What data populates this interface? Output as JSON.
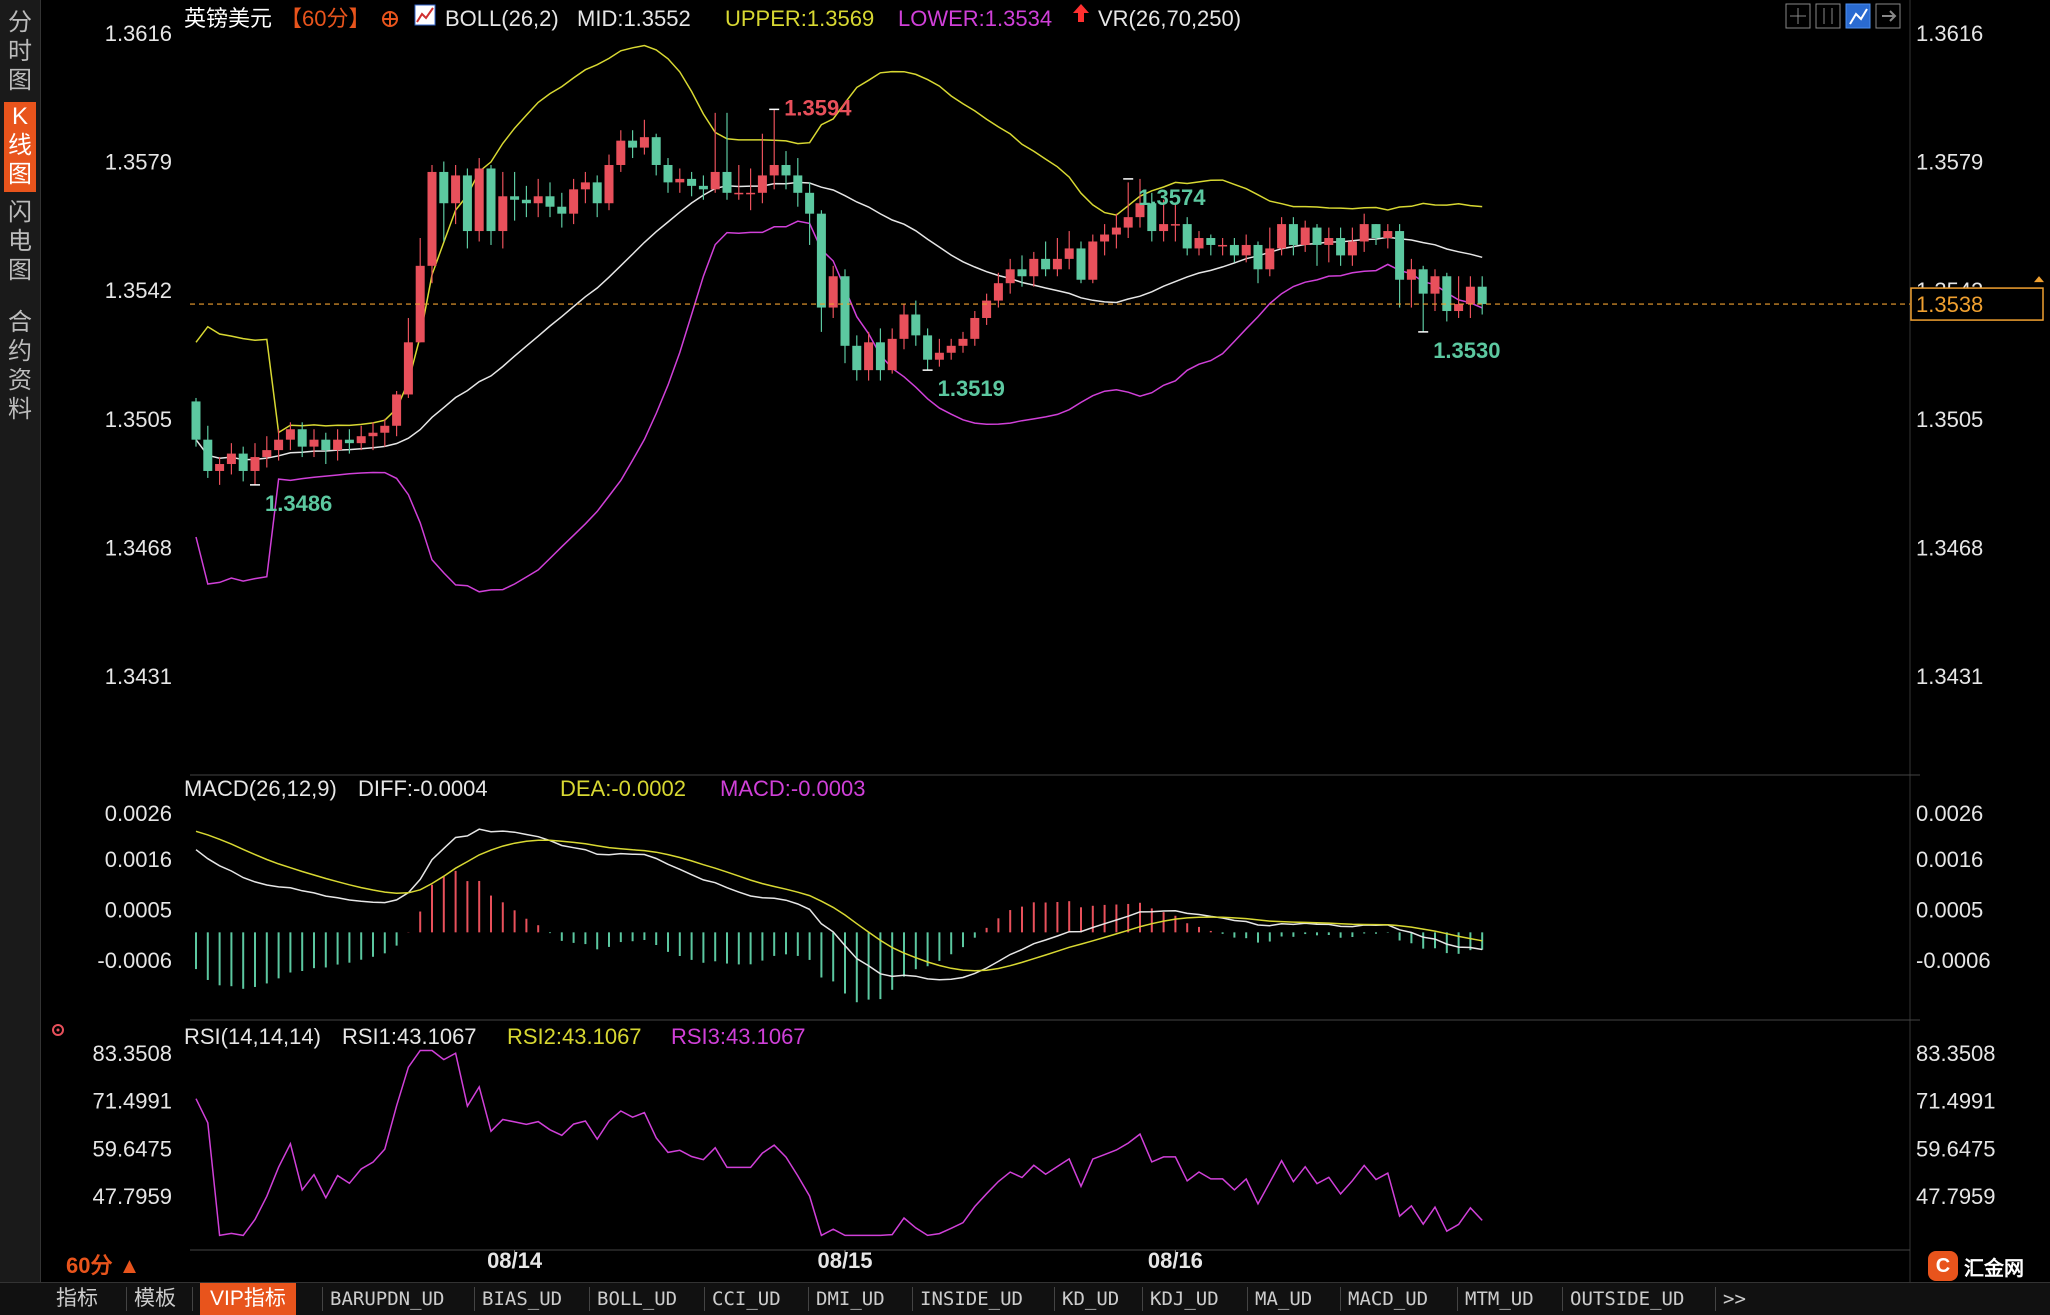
{
  "sidebar": {
    "tabs": [
      {
        "label": "分时图",
        "active": false
      },
      {
        "label": "K线图",
        "active": true
      },
      {
        "label": "闪电图",
        "active": false
      },
      {
        "label": "合约资料",
        "active": false
      }
    ]
  },
  "header": {
    "symbol": "英镑美元",
    "period": "【60分】",
    "boll_label": "BOLL(26,2)",
    "mid_label": "MID:1.3552",
    "upper_label": "UPPER:1.3569",
    "lower_label": "LOWER:1.3534",
    "vr_label": "VR(26,70,250)"
  },
  "macd_header": {
    "name": "MACD(26,12,9)",
    "diff": "DIFF:-0.0004",
    "dea": "DEA:-0.0002",
    "macd": "MACD:-0.0003"
  },
  "rsi_header": {
    "name": "RSI(14,14,14)",
    "rsi1": "RSI1:43.1067",
    "rsi2": "RSI2:43.1067",
    "rsi3": "RSI3:43.1067"
  },
  "period_label": "60分 ▲",
  "logo_text": "汇金网",
  "logo_mark": "C",
  "bottom_tabs": [
    "指标",
    "模板",
    "VIP指标",
    "BARUPDN_UD",
    "BIAS_UD",
    "BOLL_UD",
    "CCI_UD",
    "DMI_UD",
    "INSIDE_UD",
    "KD_UD",
    "KDJ_UD",
    "MA_UD",
    "MACD_UD",
    "MTM_UD",
    "OUTSIDE_UD",
    ">>"
  ],
  "colors": {
    "up": "#e8505b",
    "down": "#5cc8a0",
    "upper": "#d8d832",
    "mid": "#e6e6e6",
    "lower": "#d040d8",
    "accent": "#e8541c",
    "current": "#f0a030"
  },
  "chart_data": [
    {
      "type": "candlestick",
      "panel": "price",
      "y_ticks": [
        "1.3616",
        "1.3579",
        "1.3542",
        "1.3505",
        "1.3468",
        "1.3431"
      ],
      "ylim": [
        1.3404,
        1.3622
      ],
      "x_ticks": [
        "08/14",
        "08/15",
        "08/16"
      ],
      "current_price": "1.3538",
      "annotations": [
        {
          "text": "1.3594",
          "index": 49,
          "value": 1.3594
        },
        {
          "text": "1.3574",
          "index": 79,
          "value": 1.3574
        },
        {
          "text": "1.3486",
          "index": 5,
          "value": 1.3486
        },
        {
          "text": "1.3519",
          "index": 62,
          "value": 1.3519
        },
        {
          "text": "1.3530",
          "index": 104,
          "value": 1.353
        }
      ],
      "candles": [
        [
          1.351,
          1.3499,
          1.3511,
          1.3497
        ],
        [
          1.3499,
          1.349,
          1.3503,
          1.3488
        ],
        [
          1.349,
          1.3492,
          1.3494,
          1.3486
        ],
        [
          1.3492,
          1.3495,
          1.3498,
          1.3489
        ],
        [
          1.3495,
          1.349,
          1.3497,
          1.3487
        ],
        [
          1.349,
          1.3494,
          1.3498,
          1.3486
        ],
        [
          1.3494,
          1.3496,
          1.35,
          1.3491
        ],
        [
          1.3496,
          1.3499,
          1.3502,
          1.3493
        ],
        [
          1.3499,
          1.3502,
          1.3504,
          1.3496
        ],
        [
          1.3502,
          1.3497,
          1.3504,
          1.3494
        ],
        [
          1.3497,
          1.3499,
          1.3502,
          1.3494
        ],
        [
          1.3499,
          1.3496,
          1.3501,
          1.3492
        ],
        [
          1.3496,
          1.3499,
          1.3502,
          1.3493
        ],
        [
          1.3499,
          1.3498,
          1.3502,
          1.3495
        ],
        [
          1.3498,
          1.35,
          1.3503,
          1.3496
        ],
        [
          1.35,
          1.3501,
          1.3504,
          1.3496
        ],
        [
          1.3501,
          1.3503,
          1.3505,
          1.3497
        ],
        [
          1.3503,
          1.3512,
          1.3513,
          1.35
        ],
        [
          1.3512,
          1.3527,
          1.3534,
          1.3511
        ],
        [
          1.3527,
          1.3549,
          1.3557,
          1.3527
        ],
        [
          1.3549,
          1.3576,
          1.3578,
          1.3544
        ],
        [
          1.3576,
          1.3567,
          1.3579,
          1.3556
        ],
        [
          1.3567,
          1.3575,
          1.3578,
          1.3561
        ],
        [
          1.3575,
          1.3559,
          1.3577,
          1.3554
        ],
        [
          1.3559,
          1.3577,
          1.358,
          1.3556
        ],
        [
          1.3577,
          1.3559,
          1.3578,
          1.3555
        ],
        [
          1.3559,
          1.3569,
          1.3576,
          1.3554
        ],
        [
          1.3569,
          1.3568,
          1.3576,
          1.3562
        ],
        [
          1.3568,
          1.3567,
          1.3572,
          1.3563
        ],
        [
          1.3567,
          1.3569,
          1.3574,
          1.3563
        ],
        [
          1.3569,
          1.3566,
          1.3573,
          1.3563
        ],
        [
          1.3566,
          1.3564,
          1.357,
          1.356
        ],
        [
          1.3564,
          1.3571,
          1.3574,
          1.3561
        ],
        [
          1.3571,
          1.3573,
          1.3576,
          1.3567
        ],
        [
          1.3573,
          1.3567,
          1.3575,
          1.3563
        ],
        [
          1.3567,
          1.3578,
          1.3581,
          1.3565
        ],
        [
          1.3578,
          1.3585,
          1.3588,
          1.3576
        ],
        [
          1.3585,
          1.3583,
          1.3588,
          1.358
        ],
        [
          1.3583,
          1.3586,
          1.3591,
          1.3581
        ],
        [
          1.3586,
          1.3578,
          1.3587,
          1.3575
        ],
        [
          1.3578,
          1.3573,
          1.358,
          1.357
        ],
        [
          1.3573,
          1.3574,
          1.3577,
          1.357
        ],
        [
          1.3574,
          1.3572,
          1.3576,
          1.3569
        ],
        [
          1.3572,
          1.3571,
          1.3575,
          1.3568
        ],
        [
          1.3571,
          1.3576,
          1.3593,
          1.357
        ],
        [
          1.3576,
          1.357,
          1.3593,
          1.3568
        ],
        [
          1.357,
          1.357,
          1.3578,
          1.3568
        ],
        [
          1.357,
          1.357,
          1.3577,
          1.3565
        ],
        [
          1.357,
          1.3575,
          1.3587,
          1.3567
        ],
        [
          1.3575,
          1.3578,
          1.3594,
          1.3571
        ],
        [
          1.3578,
          1.3575,
          1.3582,
          1.3571
        ],
        [
          1.3575,
          1.357,
          1.358,
          1.3566
        ],
        [
          1.357,
          1.3564,
          1.3573,
          1.3555
        ],
        [
          1.3564,
          1.3537,
          1.3565,
          1.353
        ],
        [
          1.3537,
          1.3546,
          1.3549,
          1.3534
        ],
        [
          1.3546,
          1.3526,
          1.3548,
          1.3521
        ],
        [
          1.3526,
          1.3519,
          1.3529,
          1.3516
        ],
        [
          1.3519,
          1.3527,
          1.353,
          1.3516
        ],
        [
          1.3527,
          1.3519,
          1.3531,
          1.3516
        ],
        [
          1.3519,
          1.3528,
          1.3531,
          1.3518
        ],
        [
          1.3528,
          1.3535,
          1.3538,
          1.3525
        ],
        [
          1.3535,
          1.3529,
          1.3539,
          1.3526
        ],
        [
          1.3529,
          1.3522,
          1.3531,
          1.3519
        ],
        [
          1.3522,
          1.3524,
          1.3528,
          1.352
        ],
        [
          1.3524,
          1.3526,
          1.3528,
          1.3522
        ],
        [
          1.3526,
          1.3528,
          1.353,
          1.3524
        ],
        [
          1.3528,
          1.3534,
          1.3536,
          1.3526
        ],
        [
          1.3534,
          1.3539,
          1.3541,
          1.3532
        ],
        [
          1.3539,
          1.3544,
          1.3547,
          1.3537
        ],
        [
          1.3544,
          1.3548,
          1.3551,
          1.3541
        ],
        [
          1.3548,
          1.3546,
          1.3552,
          1.3543
        ],
        [
          1.3546,
          1.3551,
          1.3553,
          1.3543
        ],
        [
          1.3551,
          1.3548,
          1.3556,
          1.3546
        ],
        [
          1.3548,
          1.3551,
          1.3557,
          1.3546
        ],
        [
          1.3551,
          1.3554,
          1.3559,
          1.3548
        ],
        [
          1.3554,
          1.3545,
          1.3556,
          1.3544
        ],
        [
          1.3545,
          1.3556,
          1.3558,
          1.3544
        ],
        [
          1.3556,
          1.3558,
          1.3561,
          1.3552
        ],
        [
          1.3558,
          1.356,
          1.3564,
          1.3554
        ],
        [
          1.356,
          1.3563,
          1.3573,
          1.3557
        ],
        [
          1.3563,
          1.3567,
          1.3574,
          1.356
        ],
        [
          1.3567,
          1.3559,
          1.357,
          1.3556
        ],
        [
          1.3559,
          1.3561,
          1.3568,
          1.3556
        ],
        [
          1.3561,
          1.3561,
          1.3567,
          1.3556
        ],
        [
          1.3561,
          1.3554,
          1.3563,
          1.3552
        ],
        [
          1.3554,
          1.3557,
          1.3559,
          1.3552
        ],
        [
          1.3557,
          1.3555,
          1.3558,
          1.3552
        ],
        [
          1.3555,
          1.3555,
          1.3557,
          1.3552
        ],
        [
          1.3555,
          1.3552,
          1.3557,
          1.355
        ],
        [
          1.3552,
          1.3555,
          1.3558,
          1.355
        ],
        [
          1.3555,
          1.3548,
          1.3556,
          1.3544
        ],
        [
          1.3548,
          1.3554,
          1.356,
          1.3546
        ],
        [
          1.3554,
          1.3561,
          1.3563,
          1.3552
        ],
        [
          1.3561,
          1.3555,
          1.3563,
          1.3552
        ],
        [
          1.3555,
          1.356,
          1.3562,
          1.3553
        ],
        [
          1.356,
          1.3555,
          1.3561,
          1.3549
        ],
        [
          1.3555,
          1.3557,
          1.356,
          1.355
        ],
        [
          1.3557,
          1.3552,
          1.356,
          1.3549
        ],
        [
          1.3552,
          1.3556,
          1.356,
          1.3549
        ],
        [
          1.3556,
          1.3561,
          1.3564,
          1.3553
        ],
        [
          1.3561,
          1.3557,
          1.3561,
          1.3555
        ],
        [
          1.3557,
          1.3559,
          1.3561,
          1.3554
        ],
        [
          1.3559,
          1.3545,
          1.3561,
          1.3537
        ],
        [
          1.3545,
          1.3548,
          1.3551,
          1.3537
        ],
        [
          1.3548,
          1.3541,
          1.3549,
          1.353
        ],
        [
          1.3541,
          1.3546,
          1.3548,
          1.3536
        ],
        [
          1.3546,
          1.3536,
          1.3547,
          1.3533
        ],
        [
          1.3536,
          1.3538,
          1.3546,
          1.3534
        ],
        [
          1.3538,
          1.3543,
          1.3546,
          1.3534
        ],
        [
          1.3543,
          1.3538,
          1.3546,
          1.3535
        ]
      ]
    },
    {
      "type": "bar",
      "panel": "macd",
      "y_ticks": [
        "0.0026",
        "0.0016",
        "0.0005",
        "-0.0006"
      ],
      "ylim": [
        -0.0018,
        0.0031
      ]
    },
    {
      "type": "line",
      "panel": "rsi",
      "y_ticks": [
        "83.3508",
        "71.4991",
        "59.6475",
        "47.7959"
      ],
      "ylim": [
        35.6,
        86.6
      ]
    }
  ]
}
